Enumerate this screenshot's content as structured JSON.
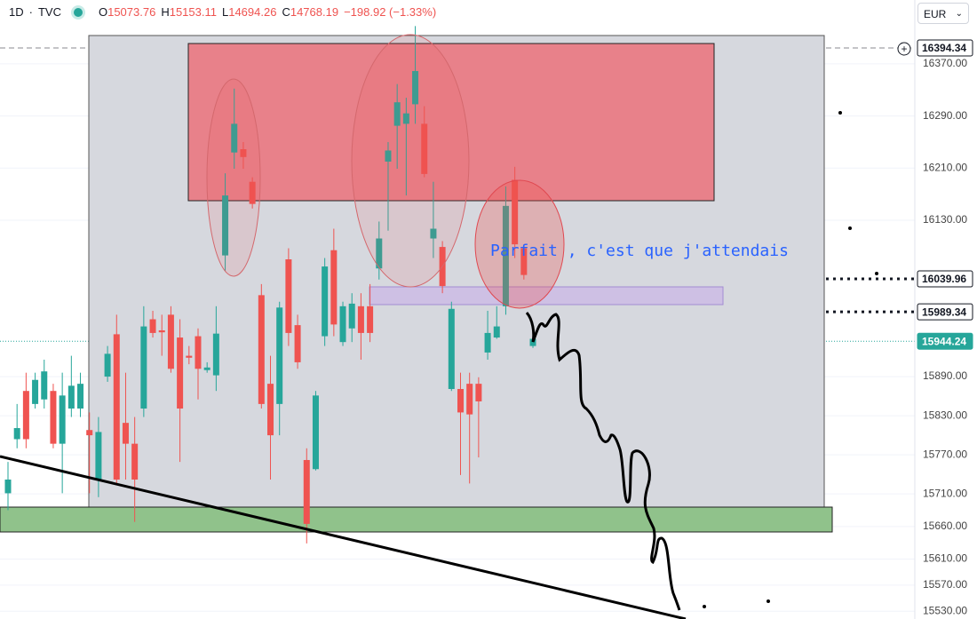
{
  "header": {
    "interval": "1D",
    "source": "TVC",
    "ohlc": [
      {
        "key": "O",
        "value": "15073.76"
      },
      {
        "key": "H",
        "value": "15153.11"
      },
      {
        "key": "L",
        "value": "14694.26"
      },
      {
        "key": "C",
        "value": "14768.19"
      }
    ],
    "change": "−198.92 (−1.33%)",
    "currency": "EUR"
  },
  "annotation": "Parfait , c'est que j'attendais",
  "chart_data": {
    "type": "candlestick",
    "up_color": "#26a69a",
    "down_color": "#ef5350",
    "open": [
      15711,
      15794,
      15868,
      15848,
      15855,
      15868,
      15787,
      15841,
      15841,
      15808,
      15732,
      15890,
      15955,
      15819,
      15787,
      15841,
      15978,
      15961,
      15985,
      15950,
      15922,
      15952,
      15900,
      15892,
      16076,
      16234,
      16239,
      16189,
      16015,
      15879,
      15848,
      16070,
      15969,
      15762,
      15748,
      15952,
      16084,
      15943,
      15964,
      15998,
      15998,
      16056,
      16220,
      16275,
      16278,
      16308,
      16278,
      16102,
      16089,
      15871,
      15871,
      15879,
      15879,
      15927,
      15950,
      15998,
      16192,
      16087,
      15937
    ],
    "high": [
      15759,
      15848,
      15896,
      15896,
      15916,
      15879,
      15896,
      15922,
      15896,
      15835,
      15828,
      15937,
      15985,
      15896,
      15828,
      15998,
      15991,
      15985,
      15998,
      15978,
      15937,
      15964,
      15912,
      15998,
      16202,
      16332,
      16250,
      16196,
      16032,
      15922,
      16005,
      16087,
      15985,
      15780,
      15868,
      16072,
      16117,
      16005,
      16018,
      16018,
      16032,
      16128,
      16250,
      16339,
      16318,
      16428,
      16305,
      16189,
      16098,
      16005,
      15896,
      15896,
      15889,
      15991,
      15998,
      16182,
      16212,
      16093,
      15950
    ],
    "low": [
      15685,
      15780,
      15780,
      15841,
      15841,
      15780,
      15711,
      15828,
      15828,
      15711,
      15705,
      15882,
      15726,
      15732,
      15667,
      15828,
      15950,
      15922,
      15896,
      15759,
      15909,
      15855,
      15896,
      15868,
      16052,
      16209,
      16209,
      16148,
      15841,
      15732,
      15800,
      15937,
      15902,
      15634,
      15746,
      15937,
      15952,
      15937,
      15943,
      15916,
      15943,
      16039,
      16114,
      16209,
      16168,
      16278,
      16196,
      16072,
      16018,
      15868,
      15739,
      15726,
      15766,
      15916,
      15948,
      15985,
      16072,
      16039,
      15934
    ],
    "close": [
      15732,
      15811,
      15794,
      15885,
      15898,
      15787,
      15861,
      15876,
      15879,
      15800,
      15805,
      15925,
      15732,
      15787,
      15732,
      15967,
      15957,
      15958,
      15902,
      15841,
      15919,
      15902,
      15904,
      15956,
      16168,
      16278,
      16227,
      16155,
      15848,
      15800,
      15996,
      15957,
      15912,
      15664,
      15861,
      16059,
      15970,
      15998,
      16002,
      15957,
      15957,
      16102,
      16237,
      16311,
      16294,
      16359,
      16201,
      16117,
      16029,
      15994,
      15835,
      15832,
      15852,
      15957,
      15967,
      16152,
      16093,
      16046,
      15948
    ],
    "ylim": [
      15518,
      16468
    ],
    "yticks": [
      {
        "value": 16370,
        "label": "16370.00"
      },
      {
        "value": 16290,
        "label": "16290.00"
      },
      {
        "value": 16210,
        "label": "16210.00"
      },
      {
        "value": 16130,
        "label": "16130.00"
      },
      {
        "value": 15890,
        "label": "15890.00"
      },
      {
        "value": 15830,
        "label": "15830.00"
      },
      {
        "value": 15770,
        "label": "15770.00"
      },
      {
        "value": 15710,
        "label": "15710.00"
      },
      {
        "value": 15660,
        "label": "15660.00"
      },
      {
        "value": 15610,
        "label": "15610.00"
      },
      {
        "value": 15570,
        "label": "15570.00"
      },
      {
        "value": 15530,
        "label": "15530.00"
      }
    ],
    "price_lines": [
      {
        "value": 16394.34,
        "color": "#131722"
      },
      {
        "value": 16039.96,
        "color": "#131722"
      },
      {
        "value": 15989.34,
        "color": "#131722"
      },
      {
        "value": 15944.24,
        "color": "#26a69a"
      }
    ]
  }
}
